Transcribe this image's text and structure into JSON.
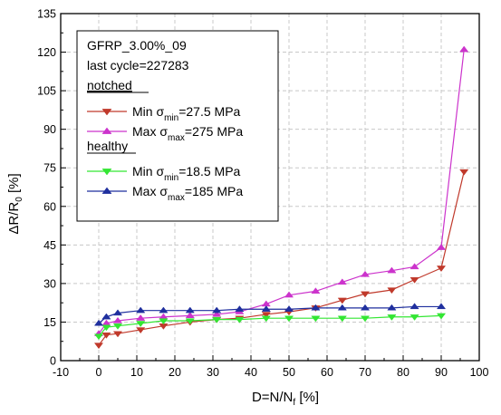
{
  "chart_data": {
    "type": "line",
    "title": "",
    "xlabel": {
      "main": "D=N/N",
      "sub": "f",
      "unit": " [%]"
    },
    "ylabel": {
      "main": "ΔR/R",
      "sub": "0",
      "unit": " [%]"
    },
    "xlim": [
      -10,
      100
    ],
    "ylim": [
      0,
      135
    ],
    "xticks": [
      -10,
      0,
      10,
      20,
      30,
      40,
      50,
      60,
      70,
      80,
      90,
      100
    ],
    "yticks": [
      0,
      15,
      30,
      45,
      60,
      75,
      90,
      105,
      120,
      135
    ],
    "grid": true,
    "legend_position": "top-left",
    "legend": {
      "line1": "GFRP_3.00%_09",
      "line2": "last cycle=227283",
      "group1": "notched",
      "group2": "healthy"
    },
    "series": [
      {
        "id": "notched_min",
        "group": "notched",
        "label_prefix": "Min σ",
        "label_sub": "min",
        "label_suffix": "=27.5 MPa",
        "color": "#c0392b",
        "marker": "triangle-down",
        "x": [
          0,
          2,
          5,
          11,
          17,
          24,
          31,
          37,
          44,
          50,
          57,
          64,
          70,
          77,
          83,
          90,
          96
        ],
        "y": [
          6,
          10,
          10.5,
          12,
          13.5,
          15,
          16,
          16.5,
          18,
          19,
          20.5,
          23.5,
          26,
          27.5,
          31.5,
          36,
          73.5
        ]
      },
      {
        "id": "notched_max",
        "group": "notched",
        "label_prefix": "Max σ",
        "label_sub": "max",
        "label_suffix": "=275 MPa",
        "color": "#cc33cc",
        "marker": "triangle-up",
        "x": [
          0,
          2,
          5,
          11,
          17,
          24,
          31,
          37,
          44,
          50,
          57,
          64,
          70,
          77,
          83,
          90,
          96
        ],
        "y": [
          10.5,
          14.5,
          15.5,
          16.5,
          17,
          17.5,
          18,
          19,
          22,
          25.5,
          27,
          30.5,
          33.5,
          35,
          36.5,
          44,
          121
        ]
      },
      {
        "id": "healthy_min",
        "group": "healthy",
        "label_prefix": "Min σ",
        "label_sub": "min",
        "label_suffix": "=18.5 MPa",
        "color": "#33e633",
        "marker": "triangle-down",
        "x": [
          0,
          2,
          5,
          11,
          17,
          24,
          31,
          37,
          44,
          50,
          57,
          64,
          70,
          77,
          83,
          90
        ],
        "y": [
          9.5,
          13,
          13.5,
          14.5,
          15.5,
          15.5,
          16,
          16,
          16.5,
          16.5,
          16.5,
          16.5,
          16.5,
          17,
          17,
          17.5
        ]
      },
      {
        "id": "healthy_max",
        "group": "healthy",
        "label_prefix": "Max σ",
        "label_sub": "max",
        "label_suffix": "=185 MPa",
        "color": "#1f2f9e",
        "marker": "triangle-up",
        "x": [
          0,
          2,
          5,
          11,
          17,
          24,
          31,
          37,
          44,
          50,
          57,
          64,
          70,
          77,
          83,
          90
        ],
        "y": [
          14.5,
          17,
          18.5,
          19.5,
          19.5,
          19.5,
          19.5,
          20,
          20,
          20,
          20.5,
          20.5,
          20.5,
          20.5,
          21,
          21
        ]
      }
    ]
  }
}
